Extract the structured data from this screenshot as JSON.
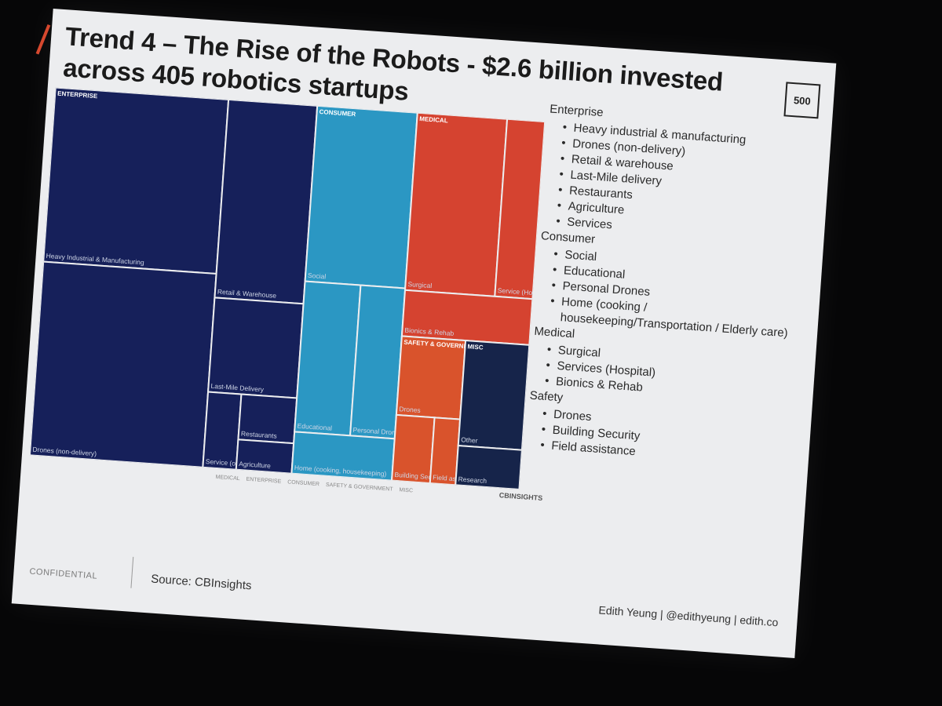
{
  "slide": {
    "title": "Trend 4 – The Rise of the Robots - $2.6 billion invested across 405 robotics startups",
    "logo": "500",
    "confidential": "CONFIDENTIAL",
    "source": "Source: CBInsights",
    "author": "Edith Yeung | @edithyeung | edith.co",
    "cbinsights": "CBINSIGHTS"
  },
  "categories": [
    {
      "name": "Enterprise",
      "items": [
        "Heavy industrial & manufacturing",
        "Drones (non-delivery)",
        "Retail & warehouse",
        "Last-Mile delivery",
        "Restaurants",
        "Agriculture",
        "Services"
      ]
    },
    {
      "name": "Consumer",
      "items": [
        "Social",
        "Educational",
        "Personal Drones",
        "Home (cooking / housekeeping/Transportation / Elderly care)"
      ]
    },
    {
      "name": "Medical",
      "items": [
        "Surgical",
        "Services (Hospital)",
        "Bionics & Rehab"
      ]
    },
    {
      "name": "Safety",
      "items": [
        "Drones",
        "Building Security",
        "Field assistance"
      ]
    }
  ],
  "chart_data": {
    "type": "treemap",
    "legend": [
      "MEDICAL",
      "ENTERPRISE",
      "CONSUMER",
      "SAFETY & GOVERNMENT",
      "MISC"
    ],
    "legend_placement": "bottom",
    "groups": [
      {
        "name": "ENTERPRISE",
        "color": "#16205a",
        "cells": [
          {
            "label": "Heavy Industrial & Manufacturing",
            "value": 36
          },
          {
            "label": "Drones (non-delivery)",
            "value": 40
          },
          {
            "label": "Retail & Warehouse",
            "value": 21
          },
          {
            "label": "Last-Mile Delivery",
            "value": 10
          },
          {
            "label": "Service (other)",
            "value": 3
          },
          {
            "label": "Restaurants",
            "value": 3
          },
          {
            "label": "Agriculture",
            "value": 2
          }
        ]
      },
      {
        "name": "CONSUMER",
        "color": "#2b97c3",
        "cells": [
          {
            "label": "Social",
            "value": 21
          },
          {
            "label": "Educational",
            "value": 10
          },
          {
            "label": "Personal Drones",
            "value": 8
          },
          {
            "label": "Home (cooking, housekeeping)",
            "value": 5
          }
        ]
      },
      {
        "name": "MEDICAL",
        "color": "#d54330",
        "cells": [
          {
            "label": "Surgical",
            "value": 19
          },
          {
            "label": "Service (Hospital)",
            "value": 8
          },
          {
            "label": "Bionics & Rehab",
            "value": 7
          }
        ]
      },
      {
        "name": "SAFETY & GOVERNMENT",
        "color": "#d9532c",
        "cells": [
          {
            "label": "Drones",
            "value": 6
          },
          {
            "label": "Building Security",
            "value": 3
          },
          {
            "label": "Field assistance",
            "value": 2
          }
        ]
      },
      {
        "name": "MISC",
        "color": "#16244a",
        "cells": [
          {
            "label": "Other",
            "value": 8
          },
          {
            "label": "Research",
            "value": 3
          }
        ]
      }
    ]
  }
}
